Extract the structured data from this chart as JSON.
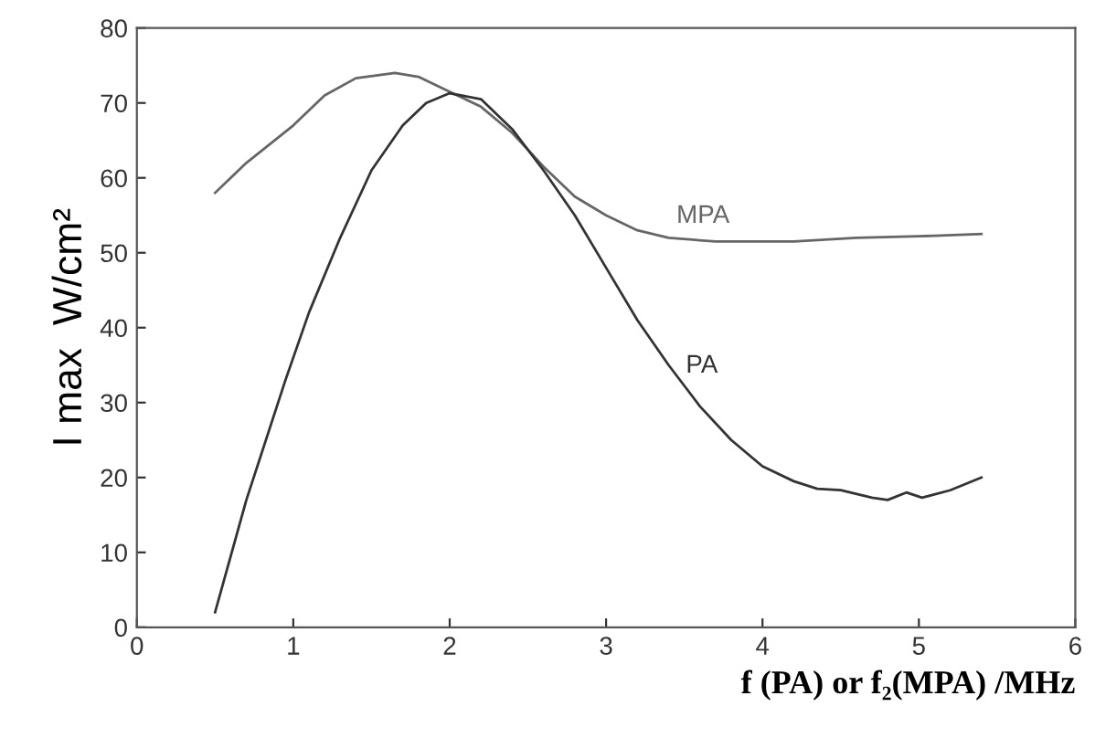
{
  "chart_data": {
    "type": "line",
    "xlabel": "f (PA) or f₂(MPA) /MHz",
    "ylabel": "I max  W/cm²",
    "xlim": [
      0,
      6
    ],
    "ylim": [
      0,
      80
    ],
    "xticks": [
      0,
      1,
      2,
      3,
      4,
      5,
      6
    ],
    "yticks": [
      0,
      10,
      20,
      30,
      40,
      50,
      60,
      70,
      80
    ],
    "grid": false,
    "legend": false,
    "marker": "none",
    "line_style": "solid",
    "series": [
      {
        "name": "MPA",
        "color": "#666666",
        "x": [
          0.5,
          0.7,
          1.0,
          1.2,
          1.4,
          1.65,
          1.8,
          2.0,
          2.2,
          2.4,
          2.6,
          2.8,
          3.0,
          3.2,
          3.4,
          3.7,
          4.2,
          4.6,
          5.0,
          5.4
        ],
        "values": [
          58,
          62,
          67,
          71,
          73.3,
          74,
          73.5,
          71.5,
          69.5,
          66,
          61.5,
          57.5,
          55,
          53,
          52,
          51.5,
          51.5,
          52,
          52.2,
          52.5
        ]
      },
      {
        "name": "PA",
        "color": "#333333",
        "x": [
          0.5,
          0.7,
          0.95,
          1.1,
          1.3,
          1.5,
          1.7,
          1.85,
          2.0,
          2.2,
          2.4,
          2.6,
          2.8,
          3.0,
          3.2,
          3.4,
          3.6,
          3.8,
          4.0,
          4.2,
          4.35,
          4.5,
          4.7,
          4.8,
          4.92,
          5.02,
          5.2,
          5.4
        ],
        "values": [
          2,
          17,
          33,
          42,
          52,
          61,
          67,
          70,
          71.3,
          70.5,
          66.5,
          61,
          55,
          48,
          41,
          35,
          29.5,
          25,
          21.5,
          19.5,
          18.5,
          18.3,
          17.3,
          17,
          18,
          17.3,
          18.3,
          20
        ]
      }
    ]
  }
}
